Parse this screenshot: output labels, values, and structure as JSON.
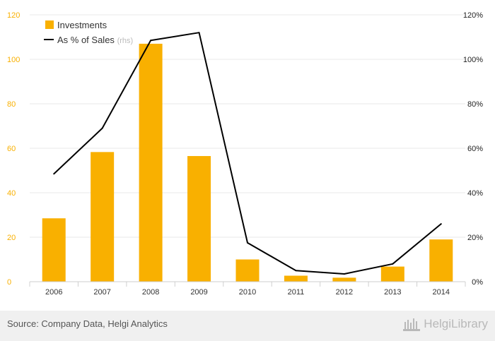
{
  "chart_data": {
    "type": "bar",
    "categories": [
      "2006",
      "2007",
      "2008",
      "2009",
      "2010",
      "2011",
      "2012",
      "2013",
      "2014"
    ],
    "series": [
      {
        "name": "Investments",
        "type": "bar",
        "axis": "left",
        "color": "#f9b000",
        "values": [
          28.5,
          58.3,
          107.0,
          56.5,
          10.0,
          2.7,
          1.8,
          6.8,
          19.0
        ]
      },
      {
        "name": "As % of Sales",
        "type": "line",
        "axis": "right",
        "color": "#000000",
        "values": [
          48.5,
          69.0,
          108.5,
          112.0,
          17.5,
          5.0,
          3.5,
          8.0,
          26.0
        ]
      }
    ],
    "legend_rhs_suffix": "(rhs)",
    "ylim": [
      0,
      120
    ],
    "yticks": [
      "0",
      "20",
      "40",
      "60",
      "80",
      "100",
      "120"
    ],
    "y2lim": [
      0,
      120
    ],
    "y2ticks": [
      "0%",
      "20%",
      "40%",
      "60%",
      "80%",
      "100%",
      "120%"
    ],
    "grid": true,
    "legend_position": "top-left",
    "colors": {
      "left_axis_text": "#f9b000",
      "grid": "#e8e8e8"
    }
  },
  "footer": {
    "source": "Source: Company Data, Helgi Analytics",
    "brand": "HelgiLibrary"
  }
}
